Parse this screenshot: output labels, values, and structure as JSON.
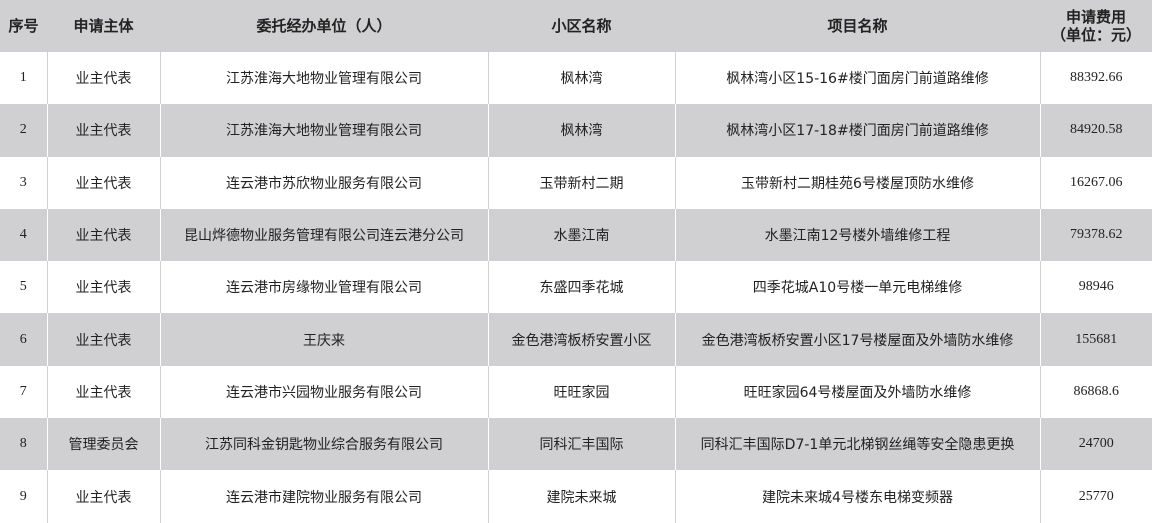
{
  "headers": [
    "序号",
    "申请主体",
    "委托经办单位（人）",
    "小区名称",
    "项目名称",
    "申请费用",
    "（单位：元）"
  ],
  "rows": [
    [
      "1",
      "业主代表",
      "江苏淮海大地物业管理有限公司",
      "枫林湾",
      "枫林湾小区15-16#楼门面房门前道路维修",
      "88392.66"
    ],
    [
      "2",
      "业主代表",
      "江苏淮海大地物业管理有限公司",
      "枫林湾",
      "枫林湾小区17-18#楼门面房门前道路维修",
      "84920.58"
    ],
    [
      "3",
      "业主代表",
      "连云港市苏欣物业服务有限公司",
      "玉带新村二期",
      "玉带新村二期桂苑6号楼屋顶防水维修",
      "16267.06"
    ],
    [
      "4",
      "业主代表",
      "昆山烨德物业服务管理有限公司连云港分公司",
      "水墨江南",
      "水墨江南12号楼外墙维修工程",
      "79378.62"
    ],
    [
      "5",
      "业主代表",
      "连云港市房缘物业管理有限公司",
      "东盛四季花城",
      "四季花城A10号楼一单元电梯维修",
      "98946"
    ],
    [
      "6",
      "业主代表",
      "王庆来",
      "金色港湾板桥安置小区",
      "金色港湾板桥安置小区17号楼屋面及外墙防水维修",
      "155681"
    ],
    [
      "7",
      "业主代表",
      "连云港市兴园物业服务有限公司",
      "旺旺家园",
      "旺旺家园64号楼屋面及外墙防水维修",
      "86868.6"
    ],
    [
      "8",
      "管理委员会",
      "江苏同科金钥匙物业综合服务有限公司",
      "同科汇丰国际",
      "同科汇丰国际D7-1单元北梯钢丝绳等安全隐患更换",
      "24700"
    ],
    [
      "9",
      "业主代表",
      "连云港市建院物业服务有限公司",
      "建院未来城",
      "建院未来城4号楼东电梯变频器",
      "25770"
    ]
  ]
}
